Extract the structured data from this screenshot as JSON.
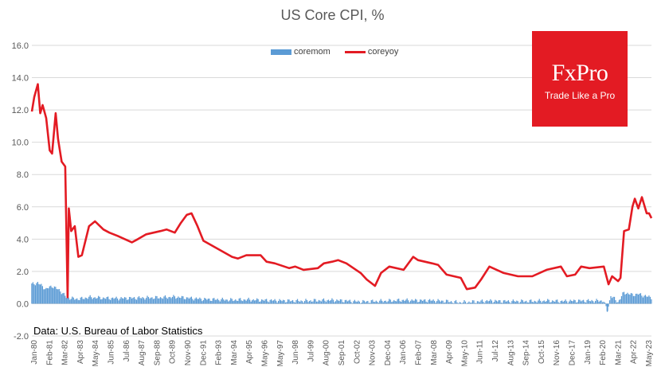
{
  "chart_data": {
    "type": "line",
    "title": "US Core CPI, %",
    "source_note": "Data: U.S. Bureau of Labor Statistics",
    "ylim": [
      -2.0,
      16.0
    ],
    "y_ticks": [
      "-2.0",
      "0.0",
      "2.0",
      "4.0",
      "6.0",
      "8.0",
      "10.0",
      "12.0",
      "14.0",
      "16.0"
    ],
    "x_ticks": [
      "Jan-80",
      "Feb-81",
      "Mar-82",
      "Apr-83",
      "May-84",
      "Jun-85",
      "Jul-86",
      "Aug-87",
      "Sep-88",
      "Oct-89",
      "Nov-90",
      "Dec-91",
      "Feb-93",
      "Mar-94",
      "Apr-95",
      "May-96",
      "May-97",
      "Jun-98",
      "Jul-99",
      "Aug-00",
      "Sep-01",
      "Oct-02",
      "Nov-03",
      "Dec-04",
      "Jan-06",
      "Feb-07",
      "Mar-08",
      "Apr-09",
      "May-10",
      "Jun-11",
      "Jul-12",
      "Aug-13",
      "Sep-14",
      "Oct-15",
      "Nov-16",
      "Dec-17",
      "Jan-19",
      "Feb-20",
      "Mar-21",
      "Apr-22",
      "May-23"
    ],
    "grid": "horizontal",
    "legend_position": "top",
    "series": [
      {
        "name": "coremom",
        "kind": "bar",
        "color": "#5b9bd5",
        "points": [
          [
            "1980-01",
            1.2
          ],
          [
            "1980-06",
            1.3
          ],
          [
            "1981-01",
            0.9
          ],
          [
            "1981-06",
            1.1
          ],
          [
            "1982-01",
            0.8
          ],
          [
            "1982-06",
            0.4
          ],
          [
            "1983-01",
            0.3
          ],
          [
            "1983-06",
            0.3
          ],
          [
            "1984-01",
            0.4
          ],
          [
            "1985-01",
            0.35
          ],
          [
            "1986-01",
            0.33
          ],
          [
            "1987-01",
            0.35
          ],
          [
            "1988-01",
            0.37
          ],
          [
            "1989-01",
            0.38
          ],
          [
            "1990-01",
            0.42
          ],
          [
            "1991-01",
            0.35
          ],
          [
            "1992-01",
            0.28
          ],
          [
            "1993-01",
            0.26
          ],
          [
            "1994-01",
            0.23
          ],
          [
            "1995-01",
            0.25
          ],
          [
            "1996-01",
            0.22
          ],
          [
            "1997-01",
            0.2
          ],
          [
            "1998-01",
            0.18
          ],
          [
            "1999-01",
            0.17
          ],
          [
            "2000-01",
            0.2
          ],
          [
            "2001-01",
            0.22
          ],
          [
            "2002-01",
            0.18
          ],
          [
            "2003-01",
            0.12
          ],
          [
            "2004-01",
            0.15
          ],
          [
            "2005-01",
            0.18
          ],
          [
            "2006-01",
            0.22
          ],
          [
            "2007-01",
            0.2
          ],
          [
            "2008-01",
            0.2
          ],
          [
            "2009-01",
            0.15
          ],
          [
            "2010-01",
            0.08
          ],
          [
            "2011-01",
            0.12
          ],
          [
            "2012-01",
            0.18
          ],
          [
            "2013-01",
            0.15
          ],
          [
            "2014-01",
            0.15
          ],
          [
            "2015-01",
            0.15
          ],
          [
            "2016-01",
            0.18
          ],
          [
            "2017-01",
            0.15
          ],
          [
            "2018-01",
            0.18
          ],
          [
            "2019-01",
            0.18
          ],
          [
            "2020-01",
            0.18
          ],
          [
            "2020-04",
            -0.45
          ],
          [
            "2020-07",
            0.5
          ],
          [
            "2021-01",
            0.1
          ],
          [
            "2021-06",
            0.7
          ],
          [
            "2022-01",
            0.55
          ],
          [
            "2022-06",
            0.6
          ],
          [
            "2023-01",
            0.45
          ],
          [
            "2023-05",
            0.4
          ]
        ]
      },
      {
        "name": "coreyoy",
        "kind": "line",
        "color": "#e31b23",
        "points": [
          [
            "1980-01",
            11.9
          ],
          [
            "1980-03",
            12.8
          ],
          [
            "1980-06",
            13.6
          ],
          [
            "1980-08",
            11.8
          ],
          [
            "1980-10",
            12.3
          ],
          [
            "1981-01",
            11.5
          ],
          [
            "1981-04",
            9.5
          ],
          [
            "1981-06",
            9.3
          ],
          [
            "1981-09",
            11.8
          ],
          [
            "1981-11",
            10.2
          ],
          [
            "1982-02",
            8.8
          ],
          [
            "1982-05",
            8.5
          ],
          [
            "1982-07",
            0.4
          ],
          [
            "1982-08",
            5.9
          ],
          [
            "1982-10",
            4.5
          ],
          [
            "1983-01",
            4.8
          ],
          [
            "1983-04",
            2.9
          ],
          [
            "1983-07",
            3.0
          ],
          [
            "1984-01",
            4.8
          ],
          [
            "1984-06",
            5.1
          ],
          [
            "1985-01",
            4.6
          ],
          [
            "1985-06",
            4.4
          ],
          [
            "1986-01",
            4.2
          ],
          [
            "1987-01",
            3.8
          ],
          [
            "1987-06",
            4.0
          ],
          [
            "1988-01",
            4.3
          ],
          [
            "1989-01",
            4.5
          ],
          [
            "1989-06",
            4.6
          ],
          [
            "1990-01",
            4.4
          ],
          [
            "1990-06",
            5.0
          ],
          [
            "1990-11",
            5.5
          ],
          [
            "1991-03",
            5.6
          ],
          [
            "1991-08",
            4.8
          ],
          [
            "1992-01",
            3.9
          ],
          [
            "1993-01",
            3.4
          ],
          [
            "1994-01",
            2.9
          ],
          [
            "1994-06",
            2.8
          ],
          [
            "1995-01",
            3.0
          ],
          [
            "1996-01",
            3.0
          ],
          [
            "1996-06",
            2.6
          ],
          [
            "1997-01",
            2.5
          ],
          [
            "1998-01",
            2.2
          ],
          [
            "1998-06",
            2.3
          ],
          [
            "1999-01",
            2.1
          ],
          [
            "2000-01",
            2.2
          ],
          [
            "2000-06",
            2.5
          ],
          [
            "2001-01",
            2.6
          ],
          [
            "2001-06",
            2.7
          ],
          [
            "2002-01",
            2.5
          ],
          [
            "2003-01",
            1.9
          ],
          [
            "2003-06",
            1.5
          ],
          [
            "2004-01",
            1.1
          ],
          [
            "2004-06",
            1.9
          ],
          [
            "2005-01",
            2.3
          ],
          [
            "2006-01",
            2.1
          ],
          [
            "2006-09",
            2.9
          ],
          [
            "2007-01",
            2.7
          ],
          [
            "2008-01",
            2.5
          ],
          [
            "2008-06",
            2.4
          ],
          [
            "2009-01",
            1.8
          ],
          [
            "2010-01",
            1.6
          ],
          [
            "2010-06",
            0.9
          ],
          [
            "2011-01",
            1.0
          ],
          [
            "2011-06",
            1.5
          ],
          [
            "2012-01",
            2.3
          ],
          [
            "2013-01",
            1.9
          ],
          [
            "2014-01",
            1.7
          ],
          [
            "2015-01",
            1.7
          ],
          [
            "2016-01",
            2.1
          ],
          [
            "2017-01",
            2.3
          ],
          [
            "2017-06",
            1.7
          ],
          [
            "2018-01",
            1.8
          ],
          [
            "2018-06",
            2.3
          ],
          [
            "2019-01",
            2.2
          ],
          [
            "2020-01",
            2.3
          ],
          [
            "2020-05",
            1.2
          ],
          [
            "2020-08",
            1.7
          ],
          [
            "2021-01",
            1.4
          ],
          [
            "2021-03",
            1.6
          ],
          [
            "2021-06",
            4.5
          ],
          [
            "2021-10",
            4.6
          ],
          [
            "2022-01",
            6.0
          ],
          [
            "2022-03",
            6.5
          ],
          [
            "2022-06",
            5.9
          ],
          [
            "2022-09",
            6.6
          ],
          [
            "2023-01",
            5.6
          ],
          [
            "2023-03",
            5.6
          ],
          [
            "2023-05",
            5.3
          ]
        ]
      }
    ]
  },
  "logo": {
    "brand": "FxPro",
    "tagline": "Trade Like a Pro",
    "color": "#e31b23"
  }
}
